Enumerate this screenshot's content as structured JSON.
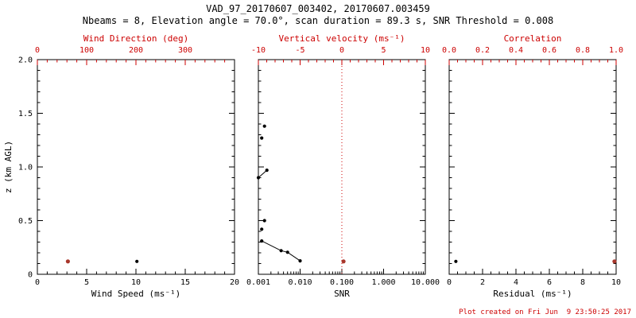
{
  "title": "VAD_97_20170607_003402, 20170607.003459",
  "subtitle": "Nbeams = 8, Elevation angle = 70.0°, scan duration = 89.3 s, SNR Threshold = 0.008",
  "footer": "Plot created on Fri Jun  9 23:50:25 2017",
  "colors": {
    "accent": "#cc0000",
    "frame": "#000000",
    "marker_black": "#000000",
    "marker_red": "#a8362b"
  },
  "chart_data": [
    {
      "id": "wind",
      "type": "scatter",
      "xlabel": "Wind Speed (ms⁻¹)",
      "ylabel": "z (km AGL)",
      "top_label": "Wind Direction (deg)",
      "xscale": "linear",
      "xlim": [
        0,
        20
      ],
      "xticks": [
        0,
        5,
        10,
        15,
        20
      ],
      "xtick_labels": [
        "0",
        "5",
        "10",
        "15",
        "20"
      ],
      "x_minor": 1,
      "top_xlim": [
        0,
        400
      ],
      "top_ticks": [
        0,
        100,
        200,
        300
      ],
      "top_tick_labels": [
        "0",
        "100",
        "200",
        "300"
      ],
      "top_minor": 20,
      "ylim": [
        0,
        2
      ],
      "yticks": [
        0,
        0.5,
        1,
        1.5,
        2
      ],
      "ytick_labels": [
        "0",
        "0.5",
        "1.0",
        "1.5",
        "2.0"
      ],
      "y_minor": 0.1,
      "series": [
        {
          "name": "wind-speed",
          "axis": "bottom",
          "color": "black",
          "line": false,
          "points": [
            [
              10.1,
              0.12
            ]
          ]
        },
        {
          "name": "wind-direction",
          "axis": "top",
          "color": "red",
          "line": false,
          "points": [
            [
              62,
              0.12
            ]
          ]
        }
      ]
    },
    {
      "id": "snr",
      "type": "scatter",
      "xlabel": "SNR",
      "top_label": "Vertical velocity (ms⁻¹)",
      "xscale": "log",
      "xlim": [
        0.001,
        10
      ],
      "xticks": [
        0.001,
        0.01,
        0.1,
        1,
        10
      ],
      "xtick_labels": [
        "0.001",
        "0.010",
        "0.100",
        "1.000",
        "10.000"
      ],
      "top_xlim": [
        -10,
        10
      ],
      "top_ticks": [
        -10,
        -5,
        0,
        5,
        10
      ],
      "top_tick_labels": [
        "-10",
        "-5",
        "0",
        "5",
        "10"
      ],
      "top_minor": 1,
      "ylim": [
        0,
        2
      ],
      "yticks": [
        0,
        0.5,
        1,
        1.5,
        2
      ],
      "y_minor": 0.1,
      "refline": {
        "axis": "top",
        "value": 0,
        "color": "red",
        "style": "dotted"
      },
      "series": [
        {
          "name": "snr-isolated-gates",
          "axis": "bottom",
          "color": "black",
          "line": false,
          "points": [
            [
              0.0014,
              1.38
            ],
            [
              0.0012,
              1.27
            ],
            [
              0.0014,
              0.5
            ],
            [
              0.0012,
              0.42
            ]
          ]
        },
        {
          "name": "snr-profile-mid",
          "axis": "bottom",
          "color": "black",
          "line": true,
          "points": [
            [
              0.001,
              0.9
            ],
            [
              0.0016,
              0.97
            ]
          ]
        },
        {
          "name": "snr-profile-low",
          "axis": "bottom",
          "color": "black",
          "line": true,
          "points": [
            [
              0.0012,
              0.31
            ],
            [
              0.0035,
              0.22
            ],
            [
              0.005,
              0.205
            ],
            [
              0.01,
              0.125
            ]
          ]
        },
        {
          "name": "vertical-velocity",
          "axis": "top",
          "color": "red",
          "line": false,
          "points": [
            [
              0.2,
              0.12
            ]
          ]
        }
      ]
    },
    {
      "id": "residual",
      "type": "scatter",
      "xlabel": "Residual (ms⁻¹)",
      "top_label": "Correlation",
      "xscale": "linear",
      "xlim": [
        0,
        10
      ],
      "xticks": [
        0,
        2,
        4,
        6,
        8,
        10
      ],
      "xtick_labels": [
        "0",
        "2",
        "4",
        "6",
        "8",
        "10"
      ],
      "x_minor": 0.5,
      "top_xlim": [
        0,
        1
      ],
      "top_ticks": [
        0,
        0.2,
        0.4,
        0.6,
        0.8,
        1
      ],
      "top_tick_labels": [
        "0.0",
        "0.2",
        "0.4",
        "0.6",
        "0.8",
        "1.0"
      ],
      "top_minor": 0.05,
      "ylim": [
        0,
        2
      ],
      "yticks": [
        0,
        0.5,
        1,
        1.5,
        2
      ],
      "y_minor": 0.1,
      "series": [
        {
          "name": "residual",
          "axis": "bottom",
          "color": "black",
          "line": false,
          "points": [
            [
              0.4,
              0.12
            ]
          ]
        },
        {
          "name": "correlation",
          "axis": "top",
          "color": "red",
          "line": false,
          "points": [
            [
              0.99,
              0.12
            ]
          ]
        }
      ]
    }
  ]
}
